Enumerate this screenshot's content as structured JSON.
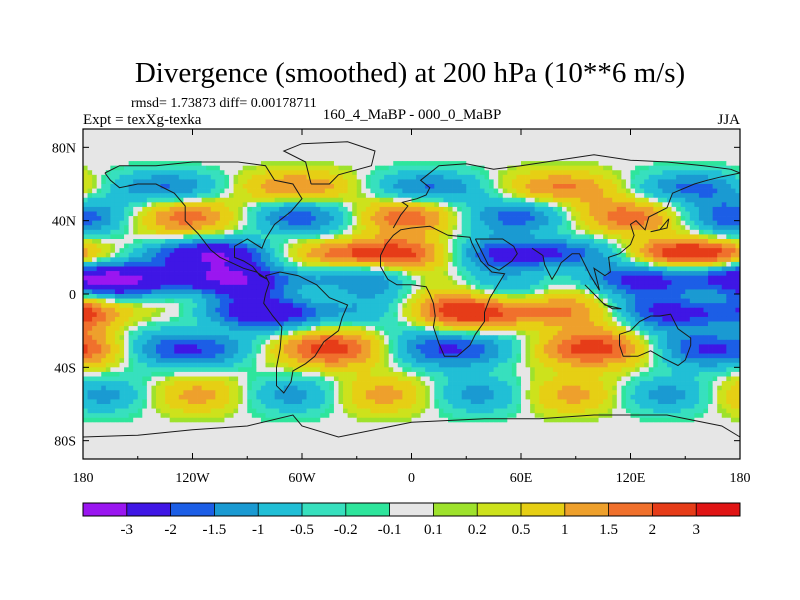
{
  "chart_data": {
    "type": "heatmap",
    "title": "Divergence (smoothed) at 200 hPa (10**6 m/s)",
    "stats_label": "rmsd= 1.73873 diff= 0.00178711",
    "experiment_label": "Expt = texXg-texka",
    "comparison_label": "160_4_MaBP - 000_0_MaBP",
    "season_label": "JJA",
    "x_range": [
      -180,
      180
    ],
    "y_range": [
      -90,
      90
    ],
    "x_ticks": [
      {
        "value": -180,
        "label": "180"
      },
      {
        "value": -120,
        "label": "120W"
      },
      {
        "value": -60,
        "label": "60W"
      },
      {
        "value": 0,
        "label": "0"
      },
      {
        "value": 60,
        "label": "60E"
      },
      {
        "value": 120,
        "label": "120E"
      },
      {
        "value": 180,
        "label": "180"
      }
    ],
    "y_ticks": [
      {
        "value": 80,
        "label": "80N"
      },
      {
        "value": 40,
        "label": "40N"
      },
      {
        "value": 0,
        "label": "0"
      },
      {
        "value": -40,
        "label": "40S"
      },
      {
        "value": -80,
        "label": "80S"
      }
    ],
    "levels": [
      -3,
      -2,
      -1.5,
      -1,
      -0.5,
      -0.2,
      -0.1,
      0.1,
      0.2,
      0.5,
      1,
      1.5,
      2,
      3
    ],
    "level_labels": [
      "-3",
      "-2",
      "-1.5",
      "-1",
      "-0.5",
      "-0.2",
      "-0.1",
      "0.1",
      "0.2",
      "0.5",
      "1",
      "1.5",
      "2",
      "3"
    ],
    "colors": [
      "#9a16f0",
      "#3f16e5",
      "#1c5ee6",
      "#1a9ad2",
      "#21bfd6",
      "#37e0be",
      "#2ee59c",
      "#e6e6e6",
      "#9ee22c",
      "#cde21c",
      "#e6cf14",
      "#eea02c",
      "#f0702c",
      "#e63c18",
      "#e01414"
    ],
    "grid_shape": [
      36,
      72
    ],
    "field_description": "approximate smoothed 200 hPa divergence difference; alternating zonal bands of strong positive (red) and negative (purple) anomalies in the tropics"
  }
}
